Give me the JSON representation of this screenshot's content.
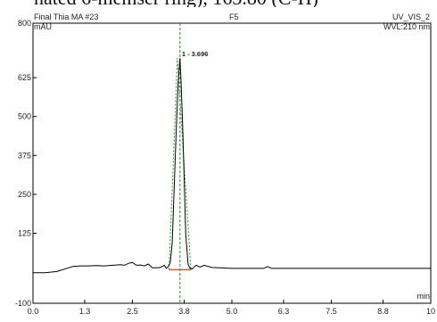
{
  "caption_fragment": "nated 6-memser ring), 163.80 (C-H)",
  "chart_data": {
    "type": "line",
    "title_left": "Final Thia MA #23",
    "title_center": "F5",
    "title_right": "UV_VIS_2",
    "wavelength": "WVL:210 nm",
    "ylabel": "mAU",
    "xlabel": "min",
    "xlim": [
      0.0,
      10.0
    ],
    "ylim": [
      -100,
      800
    ],
    "x_ticks": [
      0.0,
      1.3,
      2.5,
      3.8,
      5.0,
      6.3,
      7.5,
      8.8,
      10.0
    ],
    "x_tick_labels": [
      "0.0",
      "1.3",
      "2.5",
      "3.8",
      "5.0",
      "6.3",
      "7.5",
      "8.8",
      "10"
    ],
    "y_ticks": [
      -100,
      125,
      250,
      375,
      500,
      625,
      800
    ],
    "y_tick_labels": [
      "-100",
      "125",
      "250",
      "375",
      "500",
      "625",
      "800"
    ],
    "peak_label": "1 - 3.696",
    "peak_rt": 3.696,
    "trace_color": "#000000",
    "integration_color": "#2e8b2e",
    "baseline_marker_color": "#e05020",
    "series": [
      {
        "x": [
          0.0,
          0.3,
          0.6,
          0.9,
          1.0,
          1.2,
          1.4,
          1.6,
          1.8,
          2.0,
          2.2,
          2.3,
          2.4,
          2.5,
          2.6,
          2.7,
          2.8,
          2.9,
          3.0,
          3.1,
          3.2,
          3.3,
          3.35,
          3.4,
          3.45,
          3.5,
          3.55,
          3.6,
          3.65,
          3.696,
          3.72,
          3.76,
          3.8,
          3.84,
          3.9,
          3.95,
          4.0,
          4.1,
          4.2,
          4.3,
          4.5,
          5.0,
          5.5,
          5.8,
          5.9,
          6.0,
          6.5,
          7.0,
          8.0,
          9.0,
          10.0
        ],
        "y": [
          -2,
          -2,
          2,
          14,
          18,
          20,
          20,
          21,
          20,
          22,
          24,
          22,
          28,
          31,
          22,
          23,
          20,
          26,
          14,
          14,
          15,
          22,
          12,
          18,
          30,
          95,
          270,
          455,
          610,
          688,
          620,
          480,
          300,
          120,
          25,
          12,
          10,
          22,
          16,
          22,
          15,
          12,
          12,
          12,
          18,
          12,
          12,
          12,
          12,
          12,
          12
        ]
      }
    ]
  }
}
